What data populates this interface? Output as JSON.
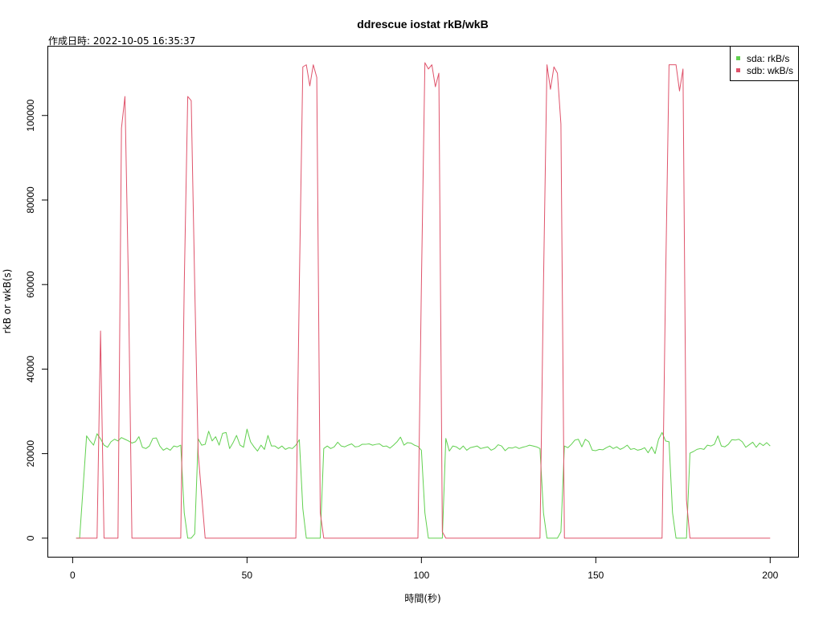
{
  "chart_data": {
    "type": "line",
    "title": "ddrescue iostat rkB/wkB",
    "subtitle": "作成日時: 2022-10-05 16:35:37",
    "xlabel": "時間(秒)",
    "ylabel": "rkB or wkB(s)",
    "xlim": [
      -7,
      208
    ],
    "ylim": [
      -4400,
      116300
    ],
    "xticks": [
      0,
      50,
      100,
      150,
      200
    ],
    "yticks": [
      0,
      20000,
      40000,
      60000,
      80000,
      100000
    ],
    "grid": false,
    "legend": "top-right",
    "series": [
      {
        "name": "sda: rkB/s",
        "color": "#61D04F",
        "points": [
          [
            1,
            0
          ],
          [
            2,
            0
          ],
          [
            3,
            12000
          ],
          [
            4,
            24200
          ],
          [
            5,
            23000
          ],
          [
            6,
            22000
          ],
          [
            7,
            24700
          ],
          [
            8,
            23500
          ],
          [
            9,
            22000
          ],
          [
            10,
            21500
          ],
          [
            11,
            22800
          ],
          [
            12,
            23400
          ],
          [
            13,
            23000
          ],
          [
            14,
            23800
          ],
          [
            15,
            23400
          ],
          [
            16,
            23000
          ],
          [
            17,
            22500
          ],
          [
            18,
            22800
          ],
          [
            19,
            24000
          ],
          [
            20,
            21500
          ],
          [
            21,
            21200
          ],
          [
            22,
            21800
          ],
          [
            23,
            23600
          ],
          [
            24,
            23700
          ],
          [
            25,
            21800
          ],
          [
            26,
            20800
          ],
          [
            27,
            21300
          ],
          [
            28,
            20800
          ],
          [
            29,
            21800
          ],
          [
            30,
            21600
          ],
          [
            31,
            22000
          ],
          [
            32,
            6000
          ],
          [
            33,
            0
          ],
          [
            34,
            0
          ],
          [
            35,
            1000
          ],
          [
            36,
            23500
          ],
          [
            37,
            22000
          ],
          [
            38,
            22200
          ],
          [
            39,
            25300
          ],
          [
            40,
            23000
          ],
          [
            41,
            24000
          ],
          [
            42,
            22000
          ],
          [
            43,
            24800
          ],
          [
            44,
            25000
          ],
          [
            45,
            21200
          ],
          [
            46,
            22600
          ],
          [
            47,
            24300
          ],
          [
            48,
            22000
          ],
          [
            49,
            21500
          ],
          [
            50,
            25800
          ],
          [
            51,
            22800
          ],
          [
            52,
            21600
          ],
          [
            53,
            20600
          ],
          [
            54,
            22000
          ],
          [
            55,
            21000
          ],
          [
            56,
            24300
          ],
          [
            57,
            21800
          ],
          [
            58,
            21800
          ],
          [
            59,
            21200
          ],
          [
            60,
            21800
          ],
          [
            61,
            21000
          ],
          [
            62,
            21400
          ],
          [
            63,
            21200
          ],
          [
            64,
            22000
          ],
          [
            65,
            23300
          ],
          [
            66,
            7000
          ],
          [
            67,
            0
          ],
          [
            68,
            0
          ],
          [
            69,
            0
          ],
          [
            70,
            0
          ],
          [
            71,
            0
          ],
          [
            72,
            21200
          ],
          [
            73,
            21800
          ],
          [
            74,
            21200
          ],
          [
            75,
            21600
          ],
          [
            76,
            22700
          ],
          [
            77,
            21800
          ],
          [
            78,
            21600
          ],
          [
            79,
            22000
          ],
          [
            80,
            22300
          ],
          [
            81,
            21600
          ],
          [
            82,
            21700
          ],
          [
            83,
            22200
          ],
          [
            84,
            22200
          ],
          [
            85,
            22300
          ],
          [
            86,
            22000
          ],
          [
            87,
            22200
          ],
          [
            88,
            22300
          ],
          [
            89,
            21700
          ],
          [
            90,
            21800
          ],
          [
            91,
            21300
          ],
          [
            92,
            22000
          ],
          [
            93,
            22800
          ],
          [
            94,
            23900
          ],
          [
            95,
            22000
          ],
          [
            96,
            22600
          ],
          [
            97,
            22500
          ],
          [
            98,
            22000
          ],
          [
            99,
            21700
          ],
          [
            100,
            20800
          ],
          [
            101,
            6000
          ],
          [
            102,
            0
          ],
          [
            103,
            0
          ],
          [
            104,
            0
          ],
          [
            105,
            0
          ],
          [
            106,
            0
          ],
          [
            107,
            23600
          ],
          [
            108,
            20600
          ],
          [
            109,
            21800
          ],
          [
            110,
            21600
          ],
          [
            111,
            21000
          ],
          [
            112,
            21800
          ],
          [
            113,
            20800
          ],
          [
            114,
            21400
          ],
          [
            115,
            21600
          ],
          [
            116,
            21800
          ],
          [
            117,
            21200
          ],
          [
            118,
            21400
          ],
          [
            119,
            21600
          ],
          [
            120,
            20800
          ],
          [
            121,
            21200
          ],
          [
            122,
            22100
          ],
          [
            123,
            21800
          ],
          [
            124,
            20700
          ],
          [
            125,
            21400
          ],
          [
            126,
            21300
          ],
          [
            127,
            21600
          ],
          [
            128,
            21200
          ],
          [
            129,
            21500
          ],
          [
            130,
            21700
          ],
          [
            131,
            22000
          ],
          [
            132,
            21800
          ],
          [
            133,
            21600
          ],
          [
            134,
            21200
          ],
          [
            135,
            6000
          ],
          [
            136,
            0
          ],
          [
            137,
            0
          ],
          [
            138,
            0
          ],
          [
            139,
            0
          ],
          [
            140,
            1500
          ],
          [
            141,
            21800
          ],
          [
            142,
            21400
          ],
          [
            143,
            22200
          ],
          [
            144,
            23200
          ],
          [
            145,
            23400
          ],
          [
            146,
            21600
          ],
          [
            147,
            23400
          ],
          [
            148,
            22800
          ],
          [
            149,
            20800
          ],
          [
            150,
            20700
          ],
          [
            151,
            21000
          ],
          [
            152,
            20900
          ],
          [
            153,
            21400
          ],
          [
            154,
            21800
          ],
          [
            155,
            21200
          ],
          [
            156,
            21600
          ],
          [
            157,
            21000
          ],
          [
            158,
            21400
          ],
          [
            159,
            22000
          ],
          [
            160,
            21000
          ],
          [
            161,
            21200
          ],
          [
            162,
            20800
          ],
          [
            163,
            21000
          ],
          [
            164,
            21400
          ],
          [
            165,
            20200
          ],
          [
            166,
            21600
          ],
          [
            167,
            20000
          ],
          [
            168,
            23400
          ],
          [
            169,
            25000
          ],
          [
            170,
            23000
          ],
          [
            171,
            22800
          ],
          [
            172,
            6000
          ],
          [
            173,
            0
          ],
          [
            174,
            0
          ],
          [
            175,
            0
          ],
          [
            176,
            0
          ],
          [
            177,
            20100
          ],
          [
            178,
            20500
          ],
          [
            179,
            21000
          ],
          [
            180,
            21200
          ],
          [
            181,
            21000
          ],
          [
            182,
            22000
          ],
          [
            183,
            21800
          ],
          [
            184,
            22200
          ],
          [
            185,
            24200
          ],
          [
            186,
            21800
          ],
          [
            187,
            21600
          ],
          [
            188,
            22200
          ],
          [
            189,
            23300
          ],
          [
            190,
            23200
          ],
          [
            191,
            23400
          ],
          [
            192,
            22800
          ],
          [
            193,
            21500
          ],
          [
            194,
            22100
          ],
          [
            195,
            22700
          ],
          [
            196,
            21500
          ],
          [
            197,
            22500
          ],
          [
            198,
            21900
          ],
          [
            199,
            22600
          ],
          [
            200,
            21800
          ]
        ]
      },
      {
        "name": "sdb: wkB/s",
        "color": "#DF536B",
        "points": [
          [
            1,
            0
          ],
          [
            7,
            0
          ],
          [
            8,
            49000
          ],
          [
            9,
            0
          ],
          [
            13,
            0
          ],
          [
            14,
            97000
          ],
          [
            15,
            104500
          ],
          [
            16,
            60000
          ],
          [
            17,
            0
          ],
          [
            31,
            0
          ],
          [
            32,
            60000
          ],
          [
            33,
            104500
          ],
          [
            34,
            103500
          ],
          [
            35,
            60000
          ],
          [
            36,
            20000
          ],
          [
            38,
            0
          ],
          [
            64,
            0
          ],
          [
            65,
            60000
          ],
          [
            66,
            111500
          ],
          [
            67,
            112000
          ],
          [
            68,
            107000
          ],
          [
            69,
            112000
          ],
          [
            70,
            109000
          ],
          [
            71,
            6000
          ],
          [
            72,
            0
          ],
          [
            99,
            0
          ],
          [
            100,
            60000
          ],
          [
            101,
            112500
          ],
          [
            102,
            111000
          ],
          [
            103,
            112000
          ],
          [
            104,
            106800
          ],
          [
            105,
            110000
          ],
          [
            106,
            1500
          ],
          [
            107,
            0
          ],
          [
            134,
            0
          ],
          [
            135,
            60000
          ],
          [
            136,
            112000
          ],
          [
            137,
            106200
          ],
          [
            138,
            111500
          ],
          [
            139,
            110000
          ],
          [
            140,
            98000
          ],
          [
            141,
            0
          ],
          [
            169,
            0
          ],
          [
            170,
            60000
          ],
          [
            171,
            112000
          ],
          [
            172,
            112000
          ],
          [
            173,
            112000
          ],
          [
            174,
            105800
          ],
          [
            175,
            111000
          ],
          [
            176,
            9000
          ],
          [
            177,
            0
          ],
          [
            200,
            0
          ]
        ]
      }
    ]
  }
}
